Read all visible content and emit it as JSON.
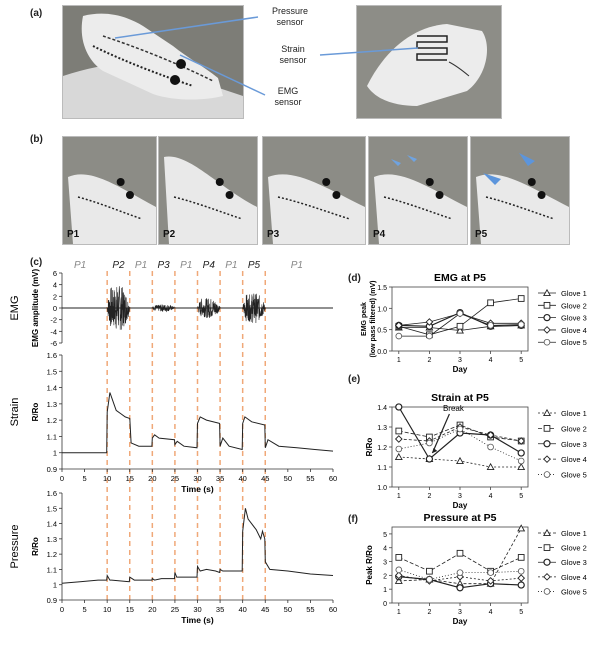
{
  "panels": {
    "a": "(a)",
    "b": "(b)",
    "c": "(c)",
    "d": "(d)",
    "e": "(e)",
    "f": "(f)"
  },
  "callouts": {
    "pressure": [
      "Pressure",
      "sensor"
    ],
    "strain": [
      "Strain",
      "sensor"
    ],
    "emg": [
      "EMG",
      "sensor"
    ]
  },
  "postures": [
    "P1",
    "P2",
    "P3",
    "P4",
    "P5"
  ],
  "colors": {
    "glove": "#e9e9e9",
    "bg": "#8c8c86",
    "dash": "#f0a878",
    "trace": "#222222"
  },
  "time_plots": {
    "segments": [
      {
        "label": "P1",
        "x": 4
      },
      {
        "label": "P2",
        "x": 12.5
      },
      {
        "label": "P1",
        "x": 17.5
      },
      {
        "label": "P3",
        "x": 22.5
      },
      {
        "label": "P1",
        "x": 27.5
      },
      {
        "label": "P4",
        "x": 32.5
      },
      {
        "label": "P1",
        "x": 37.5
      },
      {
        "label": "P5",
        "x": 42.5
      },
      {
        "label": "P1",
        "x": 52
      }
    ],
    "dash_x": [
      10,
      15,
      20,
      25,
      30,
      35,
      40,
      45
    ],
    "xticks": [
      0,
      5,
      10,
      15,
      20,
      25,
      30,
      35,
      40,
      45,
      50,
      55,
      60
    ],
    "xlabel": "Time (s)",
    "emg": {
      "side": "EMG",
      "ylabel": "EMG amplitude (mV)",
      "yticks": [
        6,
        4,
        2,
        0,
        -2,
        -4,
        -6
      ],
      "ylim": [
        -6,
        6
      ],
      "bursts": [
        {
          "t0": 10,
          "t1": 15,
          "amp": 5
        },
        {
          "t0": 20,
          "t1": 25,
          "amp": 0.8
        },
        {
          "t0": 30,
          "t1": 35,
          "amp": 2.2
        },
        {
          "t0": 40,
          "t1": 45,
          "amp": 3.3
        }
      ]
    },
    "strain": {
      "side": "Strain",
      "ylabel": "R/Ro",
      "yticks": [
        1.6,
        1.5,
        1.4,
        1.3,
        1.2,
        1.1,
        1.0,
        0.9
      ],
      "ylim": [
        0.9,
        1.6
      ],
      "x": [
        0,
        9.9,
        10,
        10.6,
        11.5,
        12,
        13,
        14,
        15,
        15.3,
        17,
        19.9,
        20,
        20.5,
        21.5,
        24.9,
        25,
        25.5,
        27,
        29.9,
        30,
        30.6,
        32,
        34.9,
        35,
        35.6,
        37,
        39.9,
        40,
        40.5,
        42,
        44.9,
        45,
        45.6,
        48,
        52,
        56,
        60
      ],
      "y": [
        1.0,
        1.0,
        1.25,
        1.37,
        1.3,
        1.26,
        1.24,
        1.22,
        1.21,
        1.06,
        1.04,
        1.04,
        1.09,
        1.11,
        1.09,
        1.08,
        1.05,
        1.07,
        1.04,
        1.03,
        1.18,
        1.22,
        1.2,
        1.18,
        1.04,
        1.09,
        1.04,
        1.02,
        1.18,
        1.22,
        1.19,
        1.17,
        1.03,
        1.08,
        1.04,
        1.03,
        1.02,
        1.01
      ]
    },
    "pressure": {
      "side": "Pressure",
      "ylabel": "R/Ro",
      "yticks": [
        1.6,
        1.5,
        1.4,
        1.3,
        1.2,
        1.1,
        1.0,
        0.9
      ],
      "ylim": [
        0.9,
        1.6
      ],
      "x": [
        0,
        4,
        8,
        9.9,
        10,
        10.6,
        11,
        14.9,
        15,
        16,
        19.9,
        20,
        20.5,
        22,
        24.9,
        25,
        25.4,
        26,
        29.9,
        30,
        30.6,
        32,
        34,
        34.9,
        35,
        35.6,
        37,
        39.9,
        40,
        40.6,
        41.2,
        43,
        44,
        44.4,
        44.9,
        45,
        46,
        50,
        55,
        60
      ],
      "y": [
        1.01,
        1.02,
        1.03,
        1.03,
        1.06,
        1.03,
        1.03,
        1.02,
        1.05,
        1.03,
        1.03,
        1.04,
        1.03,
        1.04,
        1.04,
        1.08,
        1.05,
        1.05,
        1.05,
        1.12,
        1.09,
        1.1,
        1.09,
        1.08,
        1.1,
        1.09,
        1.09,
        1.09,
        1.35,
        1.5,
        1.43,
        1.36,
        1.3,
        1.35,
        1.3,
        1.15,
        1.1,
        1.09,
        1.07,
        1.06
      ]
    }
  },
  "chart_data": [
    {
      "type": "line",
      "title": "EMG at P5",
      "xlabel": "Day",
      "ylabel": "EMG peak (low pass filtered) (mV)",
      "x": [
        1,
        2,
        3,
        4,
        5
      ],
      "ylim": [
        0,
        1.5
      ],
      "yticks": [
        0.0,
        0.5,
        1.0,
        1.5
      ],
      "series": [
        {
          "name": "Glove 1",
          "marker": "triangle",
          "dash": "",
          "values": [
            0.55,
            0.55,
            0.48,
            0.58,
            0.6
          ]
        },
        {
          "name": "Glove 2",
          "marker": "square",
          "dash": "",
          "values": [
            0.58,
            0.38,
            0.58,
            1.13,
            1.23
          ]
        },
        {
          "name": "Glove 3",
          "marker": "circle",
          "dash": "",
          "values": [
            0.6,
            0.58,
            0.9,
            0.58,
            0.6
          ]
        },
        {
          "name": "Glove 4",
          "marker": "diamond",
          "dash": "",
          "values": [
            0.6,
            0.68,
            0.88,
            0.65,
            0.65
          ]
        },
        {
          "name": "Glove 5",
          "marker": "circle-open",
          "dash": "",
          "values": [
            0.35,
            0.35,
            0.88,
            0.6,
            0.62
          ]
        }
      ]
    },
    {
      "type": "line",
      "title": "Strain at P5",
      "xlabel": "Day",
      "ylabel": "R/Ro",
      "x": [
        1,
        2,
        3,
        4,
        5
      ],
      "ylim": [
        1.0,
        1.4
      ],
      "yticks": [
        1.0,
        1.1,
        1.2,
        1.3,
        1.4
      ],
      "annotation": "Break",
      "series": [
        {
          "name": "Glove 1",
          "marker": "triangle",
          "dash": "2,2",
          "values": [
            1.15,
            1.14,
            1.13,
            1.1,
            1.1
          ]
        },
        {
          "name": "Glove 2",
          "marker": "square",
          "dash": "4,2",
          "values": [
            1.28,
            1.25,
            1.31,
            1.25,
            1.23
          ]
        },
        {
          "name": "Glove 3",
          "marker": "circle",
          "dash": "",
          "values": [
            1.4,
            1.14,
            1.27,
            1.26,
            1.17
          ]
        },
        {
          "name": "Glove 4",
          "marker": "diamond",
          "dash": "3,2",
          "values": [
            1.24,
            1.23,
            1.3,
            1.26,
            1.23
          ]
        },
        {
          "name": "Glove 5",
          "marker": "circle-open",
          "dash": "1,2",
          "values": [
            1.19,
            1.22,
            1.29,
            1.2,
            1.13
          ]
        }
      ]
    },
    {
      "type": "line",
      "title": "Pressure at P5",
      "xlabel": "Day",
      "ylabel": "Peak R/Ro",
      "x": [
        1,
        2,
        3,
        4,
        5
      ],
      "ylim": [
        0,
        5.5
      ],
      "yticks": [
        0,
        1,
        2,
        3,
        4,
        5
      ],
      "series": [
        {
          "name": "Glove 1",
          "marker": "triangle",
          "dash": "3,2",
          "values": [
            1.6,
            1.7,
            1.4,
            1.4,
            5.4
          ]
        },
        {
          "name": "Glove 2",
          "marker": "square",
          "dash": "4,2",
          "values": [
            3.3,
            2.3,
            3.6,
            2.3,
            3.3
          ]
        },
        {
          "name": "Glove 3",
          "marker": "circle",
          "dash": "",
          "values": [
            1.9,
            1.7,
            1.1,
            1.4,
            1.3
          ]
        },
        {
          "name": "Glove 4",
          "marker": "diamond",
          "dash": "2,2",
          "values": [
            2.0,
            1.6,
            1.9,
            1.6,
            1.8
          ]
        },
        {
          "name": "Glove 5",
          "marker": "circle-open",
          "dash": "1,2",
          "values": [
            2.4,
            1.7,
            2.2,
            2.2,
            2.3
          ]
        }
      ]
    }
  ]
}
